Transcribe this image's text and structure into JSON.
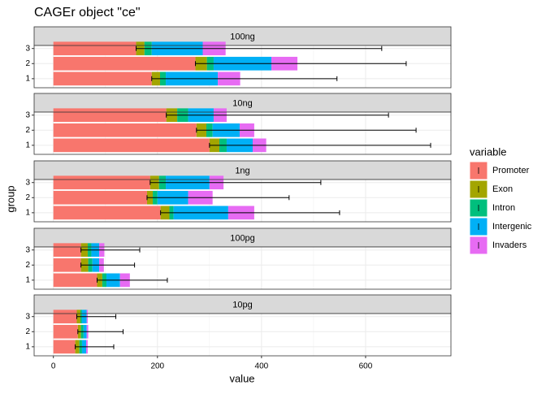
{
  "chart_data": {
    "type": "bar",
    "title": "CAGEr object \"ce\"",
    "xlabel": "value",
    "ylabel": "group",
    "categories": [
      "1",
      "2",
      "3"
    ],
    "xlim": [
      -37,
      764
    ],
    "xticks": [
      0,
      200,
      400,
      600
    ],
    "grid": true,
    "legend": {
      "title": "variable",
      "position": "right",
      "series": [
        {
          "name": "Promoter",
          "color": "#F8766D"
        },
        {
          "name": "Exon",
          "color": "#A3A500"
        },
        {
          "name": "Intron",
          "color": "#00BF7D"
        },
        {
          "name": "Intergenic",
          "color": "#00B0F6"
        },
        {
          "name": "Invaders",
          "color": "#E76BF3"
        }
      ]
    },
    "facets": [
      {
        "name": "100ng",
        "values": [
          [
            189,
            16,
            11,
            100,
            43
          ],
          [
            273,
            22,
            13,
            111,
            50
          ],
          [
            159,
            16,
            14,
            98,
            44
          ]
        ],
        "errors": [
          [
            189,
            545
          ],
          [
            273,
            678
          ],
          [
            159,
            631
          ]
        ]
      },
      {
        "name": "10ng",
        "values": [
          [
            300,
            19,
            14,
            50,
            26
          ],
          [
            275,
            19,
            12,
            52,
            28
          ],
          [
            217,
            21,
            21,
            49,
            25
          ]
        ],
        "errors": [
          [
            300,
            725
          ],
          [
            275,
            697
          ],
          [
            217,
            644
          ]
        ]
      },
      {
        "name": "1ng",
        "values": [
          [
            206,
            17,
            8,
            105,
            50
          ],
          [
            180,
            11,
            9,
            59,
            47
          ],
          [
            186,
            17,
            13,
            84,
            27
          ]
        ],
        "errors": [
          [
            206,
            550
          ],
          [
            180,
            453
          ],
          [
            186,
            514
          ]
        ]
      },
      {
        "name": "100pg",
        "values": [
          [
            84,
            10,
            8,
            26,
            19
          ],
          [
            53,
            14,
            8,
            13,
            9
          ],
          [
            53,
            13,
            7,
            15,
            10
          ]
        ],
        "errors": [
          [
            84,
            219
          ],
          [
            53,
            156
          ],
          [
            53,
            166
          ]
        ]
      },
      {
        "name": "10pg",
        "values": [
          [
            42,
            8,
            5,
            8,
            3
          ],
          [
            47,
            6,
            5,
            6,
            3
          ],
          [
            45,
            7,
            3,
            9,
            2
          ]
        ],
        "errors": [
          [
            42,
            116
          ],
          [
            47,
            134
          ],
          [
            45,
            120
          ]
        ]
      }
    ]
  }
}
